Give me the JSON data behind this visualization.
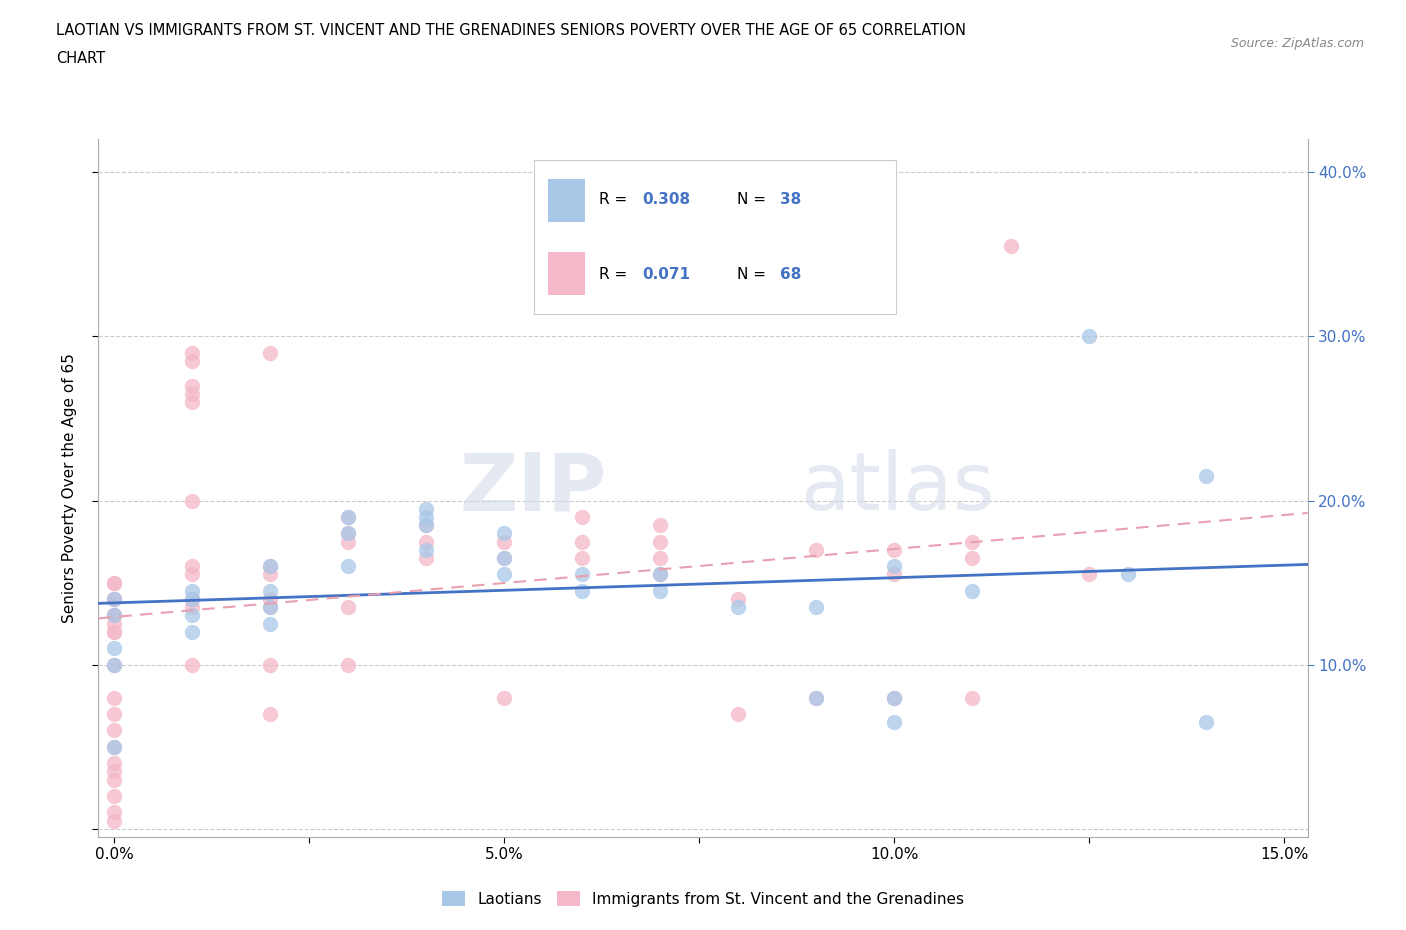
{
  "title_line1": "LAOTIAN VS IMMIGRANTS FROM ST. VINCENT AND THE GRENADINES SENIORS POVERTY OVER THE AGE OF 65 CORRELATION",
  "title_line2": "CHART",
  "source_text": "Source: ZipAtlas.com",
  "ylabel": "Seniors Poverty Over the Age of 65",
  "laotian_R": 0.308,
  "laotian_N": 38,
  "vincent_R": 0.071,
  "vincent_N": 68,
  "xlim": [
    -0.002,
    0.153
  ],
  "ylim": [
    -0.005,
    0.42
  ],
  "xticks": [
    0.0,
    0.025,
    0.05,
    0.075,
    0.1,
    0.125,
    0.15
  ],
  "xtick_labels_major": [
    0.0,
    0.05,
    0.1,
    0.15
  ],
  "xtick_labels_text": [
    "0.0%",
    "5.0%",
    "10.0%",
    "15.0%"
  ],
  "yticks_right": [
    0.1,
    0.2,
    0.3,
    0.4
  ],
  "ytick_labels_right": [
    "10.0%",
    "20.0%",
    "30.0%",
    "40.0%"
  ],
  "yticks_grid": [
    0.0,
    0.1,
    0.2,
    0.3,
    0.4
  ],
  "laotian_color": "#a8c8e8",
  "vincent_color": "#f4b8c8",
  "laotian_line_color": "#4472c4",
  "vincent_line_color": "#e8a0b0",
  "watermark_zip": "ZIP",
  "watermark_atlas": "atlas",
  "legend_labels": [
    "Laotians",
    "Immigrants from St. Vincent and the Grenadines"
  ],
  "laotian_x": [
    0.0,
    0.0,
    0.0,
    0.0,
    0.0,
    0.01,
    0.01,
    0.01,
    0.01,
    0.02,
    0.02,
    0.02,
    0.02,
    0.03,
    0.03,
    0.03,
    0.04,
    0.04,
    0.04,
    0.04,
    0.05,
    0.05,
    0.05,
    0.06,
    0.06,
    0.07,
    0.07,
    0.08,
    0.09,
    0.09,
    0.1,
    0.1,
    0.1,
    0.11,
    0.125,
    0.13,
    0.14,
    0.14
  ],
  "laotian_y": [
    0.14,
    0.13,
    0.11,
    0.1,
    0.05,
    0.145,
    0.14,
    0.13,
    0.12,
    0.16,
    0.145,
    0.135,
    0.125,
    0.19,
    0.18,
    0.16,
    0.195,
    0.19,
    0.185,
    0.17,
    0.18,
    0.165,
    0.155,
    0.155,
    0.145,
    0.155,
    0.145,
    0.135,
    0.135,
    0.08,
    0.16,
    0.08,
    0.065,
    0.145,
    0.3,
    0.155,
    0.215,
    0.065
  ],
  "vincent_x": [
    0.0,
    0.0,
    0.0,
    0.0,
    0.0,
    0.0,
    0.0,
    0.0,
    0.0,
    0.0,
    0.0,
    0.0,
    0.0,
    0.0,
    0.0,
    0.0,
    0.0,
    0.0,
    0.0,
    0.0,
    0.01,
    0.01,
    0.01,
    0.01,
    0.01,
    0.01,
    0.01,
    0.01,
    0.01,
    0.01,
    0.01,
    0.02,
    0.02,
    0.02,
    0.02,
    0.02,
    0.02,
    0.02,
    0.03,
    0.03,
    0.03,
    0.03,
    0.03,
    0.04,
    0.04,
    0.04,
    0.05,
    0.05,
    0.05,
    0.06,
    0.06,
    0.06,
    0.07,
    0.07,
    0.07,
    0.07,
    0.08,
    0.08,
    0.09,
    0.09,
    0.1,
    0.1,
    0.1,
    0.11,
    0.11,
    0.11,
    0.115,
    0.125
  ],
  "vincent_y": [
    0.15,
    0.15,
    0.14,
    0.14,
    0.13,
    0.13,
    0.125,
    0.12,
    0.12,
    0.1,
    0.08,
    0.07,
    0.06,
    0.05,
    0.04,
    0.035,
    0.03,
    0.02,
    0.01,
    0.005,
    0.29,
    0.285,
    0.27,
    0.265,
    0.26,
    0.2,
    0.16,
    0.155,
    0.14,
    0.135,
    0.1,
    0.29,
    0.16,
    0.155,
    0.14,
    0.135,
    0.1,
    0.07,
    0.19,
    0.18,
    0.175,
    0.135,
    0.1,
    0.185,
    0.175,
    0.165,
    0.175,
    0.165,
    0.08,
    0.19,
    0.175,
    0.165,
    0.185,
    0.175,
    0.165,
    0.155,
    0.14,
    0.07,
    0.17,
    0.08,
    0.17,
    0.155,
    0.08,
    0.175,
    0.165,
    0.08,
    0.355,
    0.155
  ]
}
